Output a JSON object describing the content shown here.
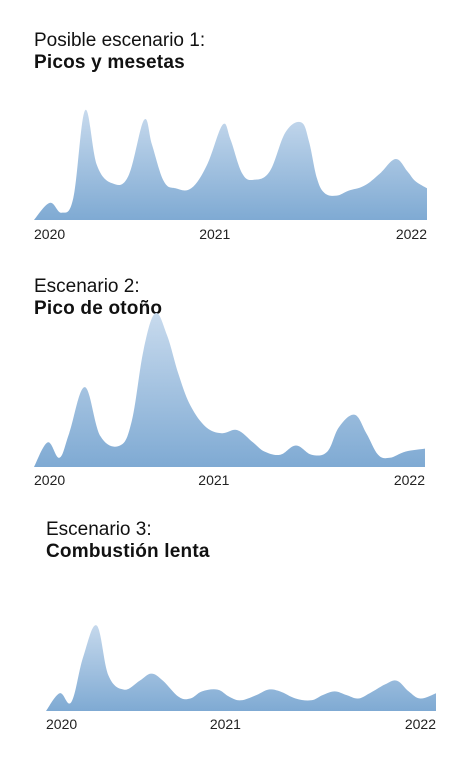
{
  "chart_data": [
    {
      "type": "area",
      "subtitle": "Posible escenario 1:",
      "title": "Picos y mesetas",
      "xticks": [
        "2020",
        "2021",
        "2022"
      ],
      "x": [
        0,
        0.04,
        0.07,
        0.1,
        0.13,
        0.16,
        0.2,
        0.24,
        0.28,
        0.3,
        0.33,
        0.36,
        0.4,
        0.44,
        0.48,
        0.5,
        0.53,
        0.56,
        0.6,
        0.64,
        0.68,
        0.7,
        0.72,
        0.74,
        0.77,
        0.8,
        0.84,
        0.88,
        0.92,
        0.95,
        0.97,
        1.0
      ],
      "values": [
        0,
        14,
        6,
        18,
        90,
        45,
        30,
        36,
        82,
        62,
        32,
        26,
        26,
        45,
        78,
        66,
        38,
        33,
        40,
        72,
        80,
        64,
        34,
        22,
        20,
        24,
        28,
        38,
        50,
        40,
        32,
        26
      ],
      "ylim": [
        0,
        100
      ]
    },
    {
      "type": "area",
      "subtitle": "Escenario 2:",
      "title": "Pico de otoño",
      "xticks": [
        "2020",
        "2021",
        "2022"
      ],
      "x": [
        0,
        0.035,
        0.065,
        0.09,
        0.13,
        0.17,
        0.22,
        0.25,
        0.28,
        0.31,
        0.34,
        0.37,
        0.4,
        0.44,
        0.48,
        0.52,
        0.56,
        0.59,
        0.63,
        0.67,
        0.71,
        0.75,
        0.78,
        0.82,
        0.85,
        0.88,
        0.91,
        0.95,
        1.0
      ],
      "values": [
        0,
        16,
        6,
        22,
        52,
        20,
        14,
        30,
        76,
        100,
        86,
        60,
        40,
        26,
        22,
        24,
        16,
        10,
        8,
        14,
        8,
        10,
        26,
        34,
        22,
        8,
        6,
        10,
        12
      ],
      "ylim": [
        0,
        110
      ]
    },
    {
      "type": "area",
      "subtitle": "Escenario 3:",
      "title": "Combustión lenta",
      "xticks": [
        "2020",
        "2021",
        "2022"
      ],
      "x": [
        0,
        0.035,
        0.065,
        0.095,
        0.13,
        0.16,
        0.2,
        0.24,
        0.27,
        0.3,
        0.34,
        0.37,
        0.4,
        0.44,
        0.47,
        0.5,
        0.54,
        0.57,
        0.6,
        0.64,
        0.68,
        0.71,
        0.74,
        0.77,
        0.8,
        0.83,
        0.87,
        0.9,
        0.93,
        0.96,
        1.0
      ],
      "values": [
        0,
        20,
        10,
        60,
        96,
        40,
        24,
        34,
        42,
        34,
        16,
        14,
        22,
        24,
        16,
        12,
        18,
        24,
        22,
        14,
        12,
        18,
        22,
        18,
        14,
        20,
        30,
        34,
        22,
        14,
        20
      ],
      "ylim": [
        0,
        110
      ]
    }
  ],
  "colors": {
    "area_top": "#cfdff0",
    "area_bottom": "#7faad3",
    "text": "#111111"
  }
}
